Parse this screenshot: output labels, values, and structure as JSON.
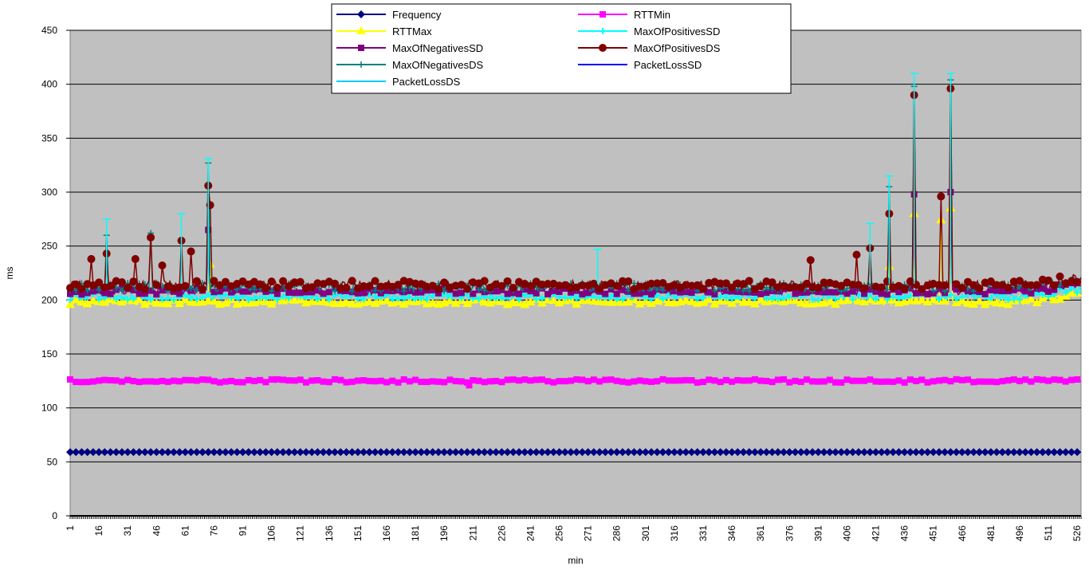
{
  "chart_data": {
    "type": "line",
    "title": "",
    "xlabel": "min",
    "ylabel": "ms",
    "ylim": [
      0,
      450
    ],
    "yticks": [
      0,
      50,
      100,
      150,
      200,
      250,
      300,
      350,
      400,
      450
    ],
    "xlim": [
      1,
      528
    ],
    "xticks": [
      1,
      16,
      31,
      46,
      61,
      76,
      91,
      106,
      121,
      136,
      151,
      166,
      181,
      196,
      211,
      226,
      241,
      256,
      271,
      286,
      301,
      316,
      331,
      346,
      361,
      376,
      391,
      406,
      421,
      436,
      451,
      466,
      481,
      496,
      511,
      526
    ],
    "grid": "horizontal",
    "legend_position": "top-center",
    "plot_background": "#c0c0c0",
    "series": [
      {
        "name": "Frequency",
        "color": "#000080",
        "marker": "diamond",
        "baseline": 59,
        "noise": 0,
        "spikes": []
      },
      {
        "name": "RTTMin",
        "color": "#ff00ff",
        "marker": "square",
        "baseline": 125,
        "noise": 1.5,
        "spikes": [
          [
            209,
            121
          ]
        ]
      },
      {
        "name": "RTTMax",
        "color": "#ffff00",
        "marker": "triangle",
        "baseline": 198,
        "noise": 2.5,
        "spikes": [
          [
            74,
            233
          ],
          [
            428,
            231
          ],
          [
            441,
            280
          ],
          [
            455,
            274
          ],
          [
            460,
            285
          ]
        ]
      },
      {
        "name": "MaxOfPositivesSD",
        "color": "#00ffff",
        "marker": "star",
        "baseline": 203,
        "noise": 3,
        "spikes": []
      },
      {
        "name": "MaxOfNegativesSD",
        "color": "#800080",
        "marker": "square",
        "baseline": 208,
        "noise": 3,
        "spikes": [
          [
            73,
            265
          ],
          [
            441,
            298
          ],
          [
            460,
            300
          ]
        ]
      },
      {
        "name": "MaxOfPositivesDS",
        "color": "#800000",
        "marker": "circle",
        "baseline": 214,
        "noise": 4,
        "spikes": [
          [
            12,
            238
          ],
          [
            20,
            243
          ],
          [
            35,
            238
          ],
          [
            43,
            258
          ],
          [
            49,
            232
          ],
          [
            59,
            255
          ],
          [
            64,
            245
          ],
          [
            73,
            306
          ],
          [
            74,
            288
          ],
          [
            418,
            248
          ],
          [
            428,
            280
          ],
          [
            441,
            390
          ],
          [
            455,
            296
          ],
          [
            460,
            396
          ],
          [
            411,
            242
          ],
          [
            387,
            237
          ]
        ]
      },
      {
        "name": "MaxOfNegativesDS",
        "color": "#008080",
        "marker": "plus",
        "baseline": 212,
        "noise": 4,
        "spikes": [
          [
            20,
            260
          ],
          [
            43,
            262
          ],
          [
            73,
            327
          ],
          [
            428,
            305
          ],
          [
            441,
            398
          ],
          [
            460,
            404
          ]
        ]
      },
      {
        "name": "PacketLossSD",
        "color": "#0000ff",
        "marker": "none",
        "baseline": 0,
        "noise": 0,
        "spikes": []
      },
      {
        "name": "PacketLossDS",
        "color": "#00ccff",
        "marker": "none",
        "baseline": 0,
        "noise": 0,
        "spikes": []
      },
      {
        "name": "",
        "color": "#00ffff",
        "marker": "errorbars",
        "baseline": 0,
        "noise": 0,
        "spikes": [
          [
            20,
            275
          ],
          [
            59,
            280
          ],
          [
            73,
            331
          ],
          [
            276,
            247
          ],
          [
            418,
            271
          ],
          [
            428,
            315
          ],
          [
            441,
            410
          ],
          [
            460,
            410
          ]
        ]
      }
    ]
  }
}
